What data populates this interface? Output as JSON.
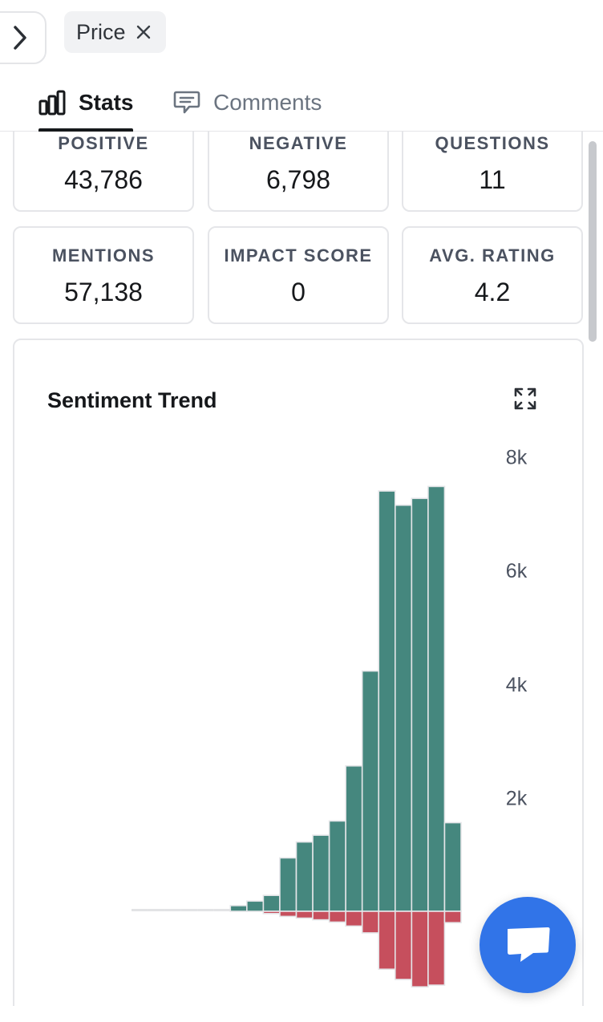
{
  "filter": {
    "label": "Price"
  },
  "tabs": [
    {
      "label": "Stats",
      "icon": "bar-chart-icon",
      "active": true
    },
    {
      "label": "Comments",
      "icon": "comment-icon",
      "active": false
    }
  ],
  "stats": [
    {
      "label": "POSITIVE",
      "value": "43,786"
    },
    {
      "label": "NEGATIVE",
      "value": "6,798"
    },
    {
      "label": "QUESTIONS",
      "value": "11"
    },
    {
      "label": "MENTIONS",
      "value": "57,138"
    },
    {
      "label": "IMPACT SCORE",
      "value": "0"
    },
    {
      "label": "AVG. RATING",
      "value": "4.2"
    }
  ],
  "chart": {
    "title": "Sentiment Trend"
  },
  "chart_data": {
    "type": "bar",
    "title": "Sentiment Trend",
    "xlabel": "",
    "ylabel": "",
    "y_ticks": [
      "2k",
      "4k",
      "6k",
      "8k"
    ],
    "ylim": [
      -1400,
      8500
    ],
    "grid": false,
    "legend": "none",
    "series": [
      {
        "values": [
          20,
          20,
          20,
          40,
          40,
          40,
          100,
          180,
          280,
          940,
          1220,
          1340,
          1590,
          2560,
          4230,
          7400,
          7150,
          7270,
          7480,
          1560
        ]
      },
      {
        "values": [
          0,
          0,
          0,
          0,
          0,
          0,
          0,
          0,
          -40,
          -90,
          -120,
          -150,
          -190,
          -260,
          -380,
          -1020,
          -1200,
          -1330,
          -1300,
          -200
        ]
      }
    ],
    "colors": {
      "positive": "#45877e",
      "negative": "#c64f5d",
      "zero": "#e2e3e5"
    }
  }
}
